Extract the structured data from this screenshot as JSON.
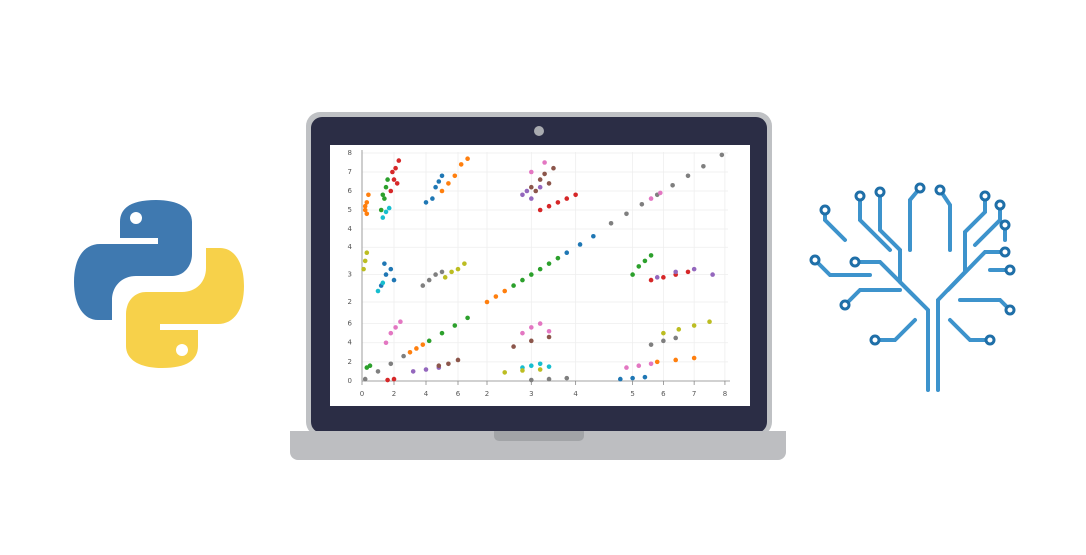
{
  "chart_data": {
    "type": "scatter-matrix",
    "rows": [
      {
        "ylim": [
          4,
          8
        ],
        "yticks": [
          4,
          5,
          6,
          7,
          8
        ]
      },
      {
        "ylim": [
          2,
          4.3
        ],
        "yticks": [
          2,
          3,
          4
        ]
      },
      {
        "ylim": [
          0,
          6.9
        ],
        "yticks": [
          0,
          2,
          4,
          6
        ]
      }
    ],
    "columns": [
      {
        "xlim": [
          0,
          7.25
        ],
        "xticks": [
          0,
          2,
          4,
          6
        ]
      },
      {
        "xlim": [
          2,
          4.55
        ],
        "xticks": [
          2,
          3,
          4
        ]
      },
      {
        "xlim": [
          4.2,
          8.1
        ],
        "xticks": [
          5,
          6,
          7,
          8
        ]
      }
    ],
    "panels": [
      [
        {
          "series": [
            {
              "color": "#ff7f0e",
              "x": [
                0.2,
                0.3,
                0.4,
                0.3,
                0.2
              ],
              "y": [
                5.0,
                5.4,
                5.8,
                4.8,
                5.2
              ]
            },
            {
              "color": "#2ca02c",
              "x": [
                1.2,
                1.4,
                1.5,
                1.3,
                1.6
              ],
              "y": [
                5.0,
                5.6,
                6.2,
                5.8,
                6.6
              ]
            },
            {
              "color": "#d62728",
              "x": [
                1.8,
                2.0,
                2.1,
                2.3,
                1.9,
                2.2
              ],
              "y": [
                6.0,
                6.6,
                7.2,
                7.6,
                7.0,
                6.4
              ]
            },
            {
              "color": "#17becf",
              "x": [
                1.3,
                1.5,
                1.7
              ],
              "y": [
                4.6,
                4.9,
                5.1
              ]
            },
            {
              "color": "#1f77b4",
              "x": [
                4.0,
                4.4,
                4.6,
                4.8,
                5.0
              ],
              "y": [
                5.4,
                5.6,
                6.2,
                6.5,
                6.8
              ]
            },
            {
              "color": "#ff7f0e",
              "x": [
                5.0,
                5.4,
                5.8,
                6.2,
                6.6
              ],
              "y": [
                6.0,
                6.4,
                6.8,
                7.4,
                7.7
              ]
            }
          ]
        },
        {
          "series": [
            {
              "color": "#8c564b",
              "x": [
                3.0,
                3.2,
                3.3,
                3.5,
                3.4,
                3.1
              ],
              "y": [
                6.2,
                6.6,
                6.9,
                7.2,
                6.4,
                6.0
              ]
            },
            {
              "color": "#9467bd",
              "x": [
                2.8,
                3.0,
                3.2,
                2.9
              ],
              "y": [
                5.8,
                5.6,
                6.2,
                6.0
              ]
            },
            {
              "color": "#d62728",
              "x": [
                3.2,
                3.4,
                3.6,
                3.8,
                4.0
              ],
              "y": [
                5.0,
                5.2,
                5.4,
                5.6,
                5.8
              ]
            },
            {
              "color": "#e377c2",
              "x": [
                3.0,
                3.3
              ],
              "y": [
                7.0,
                7.5
              ]
            }
          ]
        },
        {
          "series": [
            {
              "color": "#7f7f7f",
              "x": [
                4.3,
                4.8,
                5.3,
                5.8,
                6.3,
                6.8,
                7.3,
                7.9
              ],
              "y": [
                4.3,
                4.8,
                5.3,
                5.8,
                6.3,
                6.8,
                7.3,
                7.9
              ]
            },
            {
              "color": "#e377c2",
              "x": [
                5.6,
                5.9
              ],
              "y": [
                5.6,
                5.9
              ]
            }
          ]
        }
      ],
      [
        {
          "series": [
            {
              "color": "#bcbd22",
              "x": [
                0.1,
                0.2,
                0.3
              ],
              "y": [
                3.2,
                3.5,
                3.8
              ]
            },
            {
              "color": "#1f77b4",
              "x": [
                1.2,
                1.5,
                1.8,
                2.0,
                1.4
              ],
              "y": [
                2.6,
                3.0,
                3.2,
                2.8,
                3.4
              ]
            },
            {
              "color": "#17becf",
              "x": [
                1.0,
                1.3
              ],
              "y": [
                2.4,
                2.7
              ]
            },
            {
              "color": "#7f7f7f",
              "x": [
                3.8,
                4.2,
                4.6,
                5.0
              ],
              "y": [
                2.6,
                2.8,
                3.0,
                3.1
              ]
            },
            {
              "color": "#bcbd22",
              "x": [
                5.2,
                5.6,
                6.0,
                6.4
              ],
              "y": [
                2.9,
                3.1,
                3.2,
                3.4
              ]
            }
          ]
        },
        {
          "series": [
            {
              "color": "#ff7f0e",
              "x": [
                2.0,
                2.2,
                2.4
              ],
              "y": [
                2.0,
                2.2,
                2.4
              ]
            },
            {
              "color": "#2ca02c",
              "x": [
                2.6,
                2.8,
                3.0,
                3.2,
                3.4,
                3.6
              ],
              "y": [
                2.6,
                2.8,
                3.0,
                3.2,
                3.4,
                3.6
              ]
            },
            {
              "color": "#1f77b4",
              "x": [
                3.8,
                4.1,
                4.4
              ],
              "y": [
                3.8,
                4.1,
                4.4
              ]
            }
          ]
        },
        {
          "series": [
            {
              "color": "#2ca02c",
              "x": [
                5.0,
                5.2,
                5.4,
                5.6
              ],
              "y": [
                3.0,
                3.3,
                3.5,
                3.7
              ]
            },
            {
              "color": "#d62728",
              "x": [
                5.6,
                6.0,
                6.4,
                6.8
              ],
              "y": [
                2.8,
                2.9,
                3.0,
                3.1
              ]
            },
            {
              "color": "#9467bd",
              "x": [
                5.8,
                6.4,
                7.0,
                7.6
              ],
              "y": [
                2.9,
                3.1,
                3.2,
                3.0
              ]
            }
          ]
        }
      ],
      [
        {
          "series": [
            {
              "color": "#7f7f7f",
              "x": [
                0.2,
                1.0,
                1.8,
                2.6
              ],
              "y": [
                0.2,
                1.0,
                1.8,
                2.6
              ]
            },
            {
              "color": "#ff7f0e",
              "x": [
                3.0,
                3.4,
                3.8
              ],
              "y": [
                3.0,
                3.4,
                3.8
              ]
            },
            {
              "color": "#2ca02c",
              "x": [
                4.2,
                5.0,
                5.8,
                6.6
              ],
              "y": [
                4.2,
                5.0,
                5.8,
                6.6
              ]
            },
            {
              "color": "#2ca02c",
              "x": [
                0.3,
                0.5
              ],
              "y": [
                1.4,
                1.6
              ]
            },
            {
              "color": "#d62728",
              "x": [
                1.6,
                2.0
              ],
              "y": [
                0.1,
                0.2
              ]
            },
            {
              "color": "#e377c2",
              "x": [
                1.5,
                1.8,
                2.1,
                2.4
              ],
              "y": [
                4.0,
                5.0,
                5.6,
                6.2
              ]
            },
            {
              "color": "#9467bd",
              "x": [
                3.2,
                4.0,
                4.8
              ],
              "y": [
                1.0,
                1.2,
                1.4
              ]
            },
            {
              "color": "#8c564b",
              "x": [
                4.8,
                5.4,
                6.0
              ],
              "y": [
                1.6,
                1.8,
                2.2
              ]
            }
          ]
        },
        {
          "series": [
            {
              "color": "#e377c2",
              "x": [
                2.8,
                3.0,
                3.2,
                3.4
              ],
              "y": [
                5.0,
                5.6,
                6.0,
                5.2
              ]
            },
            {
              "color": "#8c564b",
              "x": [
                2.6,
                3.0,
                3.4
              ],
              "y": [
                3.6,
                4.2,
                4.6
              ]
            },
            {
              "color": "#17becf",
              "x": [
                2.8,
                3.0,
                3.2,
                3.4
              ],
              "y": [
                1.4,
                1.6,
                1.8,
                1.5
              ]
            },
            {
              "color": "#bcbd22",
              "x": [
                2.4,
                2.8,
                3.2
              ],
              "y": [
                0.9,
                1.1,
                1.2
              ]
            },
            {
              "color": "#7f7f7f",
              "x": [
                3.0,
                3.4,
                3.8
              ],
              "y": [
                0.1,
                0.2,
                0.3
              ]
            }
          ]
        },
        {
          "series": [
            {
              "color": "#bcbd22",
              "x": [
                6.0,
                6.5,
                7.0,
                7.5
              ],
              "y": [
                5.0,
                5.4,
                5.8,
                6.2
              ]
            },
            {
              "color": "#7f7f7f",
              "x": [
                5.6,
                6.0,
                6.4
              ],
              "y": [
                3.8,
                4.2,
                4.5
              ]
            },
            {
              "color": "#ff7f0e",
              "x": [
                5.8,
                6.4,
                7.0
              ],
              "y": [
                2.0,
                2.2,
                2.4
              ]
            },
            {
              "color": "#e377c2",
              "x": [
                4.8,
                5.2,
                5.6
              ],
              "y": [
                1.4,
                1.6,
                1.8
              ]
            },
            {
              "color": "#1f77b4",
              "x": [
                4.6,
                5.0,
                5.4
              ],
              "y": [
                0.2,
                0.3,
                0.4
              ]
            }
          ]
        }
      ]
    ]
  }
}
